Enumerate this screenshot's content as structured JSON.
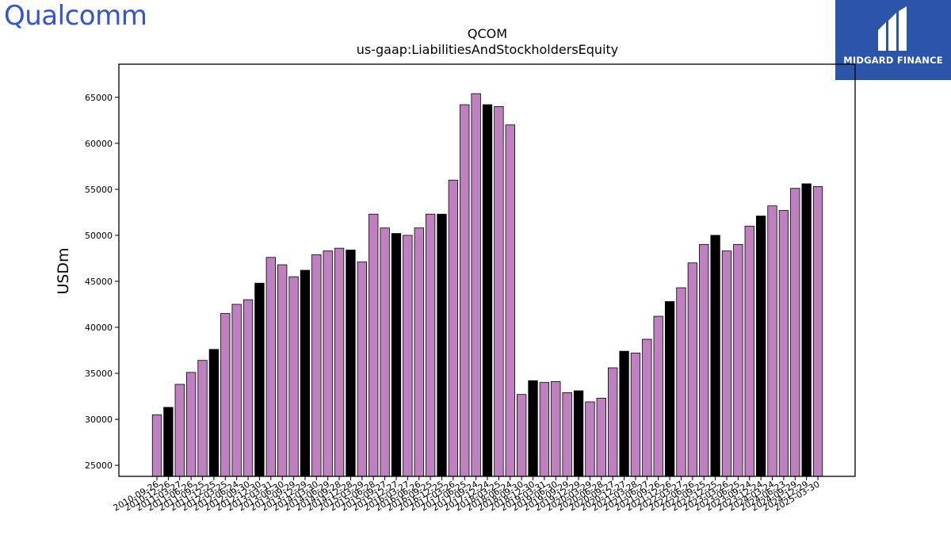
{
  "logos": {
    "left_text": "Qualcomm",
    "right_text": "MIDGARD FINANCE",
    "left_color": "#3253DC",
    "right_bg": "#2A55A8"
  },
  "chart_data": {
    "type": "bar",
    "title": "QCOM",
    "subtitle": "us-gaap:LiabilitiesAndStockholdersEquity",
    "xlabel": "",
    "ylabel": "USDm",
    "ylim": [
      23800,
      68600
    ],
    "yticks": [
      25000,
      30000,
      35000,
      40000,
      45000,
      50000,
      55000,
      60000,
      65000
    ],
    "grid": false,
    "legend": "none",
    "colors": {
      "quarterly": "#BF80BF",
      "annual": "#000000",
      "edge": "#000000"
    },
    "categories": [
      "2010-09-26",
      "2010-12-26",
      "2011-03-27",
      "2011-06-26",
      "2011-09-25",
      "2011-12-25",
      "2012-03-25",
      "2012-06-24",
      "2012-09-30",
      "2012-12-30",
      "2013-03-31",
      "2013-06-30",
      "2013-09-29",
      "2013-12-29",
      "2014-03-30",
      "2014-06-29",
      "2014-09-28",
      "2014-12-28",
      "2015-03-29",
      "2015-06-28",
      "2015-09-27",
      "2015-12-27",
      "2016-03-27",
      "2016-06-26",
      "2016-09-25",
      "2016-12-25",
      "2017-03-26",
      "2017-06-25",
      "2017-09-24",
      "2017-12-24",
      "2018-03-25",
      "2018-06-24",
      "2018-09-30",
      "2018-12-30",
      "2019-03-31",
      "2019-06-30",
      "2019-09-29",
      "2019-12-29",
      "2020-03-29",
      "2020-06-28",
      "2020-09-27",
      "2020-12-27",
      "2021-03-28",
      "2021-06-27",
      "2021-09-26",
      "2021-12-26",
      "2022-03-27",
      "2022-06-26",
      "2022-09-25",
      "2022-12-25",
      "2023-03-26",
      "2023-06-25",
      "2023-09-24",
      "2023-12-24",
      "2024-03-24",
      "2024-06-23",
      "2024-09-29",
      "2024-12-29",
      "2025-03-30"
    ],
    "series": [
      {
        "values": [
          30500,
          31300,
          33800,
          35100,
          36400,
          37600,
          41500,
          42500,
          43000,
          44800,
          47600,
          46800,
          45500,
          46200,
          47900,
          48300,
          48600,
          48400,
          47100,
          52300,
          50800,
          50200,
          50000,
          50800,
          52300,
          52300,
          56000,
          64200,
          65400,
          64200,
          64000,
          62000,
          32700,
          34200,
          34000,
          34100,
          32900,
          33100,
          31900,
          32300,
          35600,
          37400,
          37200,
          38700,
          41200,
          42800,
          44300,
          47000,
          49000,
          50000,
          48300,
          49000,
          51000,
          52100,
          53200,
          52700,
          55100,
          55600,
          55300
        ]
      }
    ],
    "annual_flags": [
      0,
      1,
      0,
      0,
      0,
      1,
      0,
      0,
      0,
      1,
      0,
      0,
      0,
      1,
      0,
      0,
      0,
      1,
      0,
      0,
      0,
      1,
      0,
      0,
      0,
      1,
      0,
      0,
      0,
      1,
      0,
      0,
      0,
      1,
      0,
      0,
      0,
      1,
      0,
      0,
      0,
      1,
      0,
      0,
      0,
      1,
      0,
      0,
      0,
      1,
      0,
      0,
      0,
      1,
      0,
      0,
      0,
      1,
      0
    ]
  }
}
